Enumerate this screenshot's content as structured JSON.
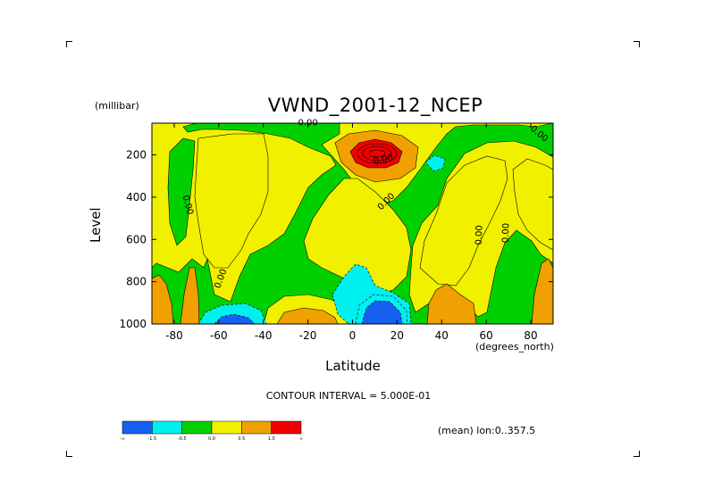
{
  "chart_data": {
    "type": "heatmap",
    "title": "VWND_2001-12_NCEP",
    "xlabel": "Latitude",
    "xunit": "(degrees_north)",
    "ylabel": "Level",
    "yunit": "(millibar)",
    "x_ticks": [
      "-80",
      "-60",
      "-40",
      "-20",
      "0",
      "20",
      "40",
      "60",
      "80"
    ],
    "y_ticks": [
      "200",
      "400",
      "600",
      "800",
      "1000"
    ],
    "xlim": [
      -90,
      90
    ],
    "ylim": [
      1000,
      50
    ],
    "y_reversed": true,
    "contour_interval_text": "CONTOUR INTERVAL = 5.000E-01",
    "mean_text": "(mean) lon:0..357.5",
    "contour_labels": [
      "0.00",
      "0.00",
      "0.00",
      "0.00",
      "0.00",
      "0.00",
      "0.00",
      "0.00"
    ],
    "colorbar": {
      "colors": [
        "#1560f0",
        "#00f0f0",
        "#00d000",
        "#f0f000",
        "#f0a000",
        "#f00000"
      ],
      "labels": [
        "-∞",
        "-1.5",
        "-0.5",
        "0.0",
        "0.5",
        "1.0",
        "∞"
      ]
    },
    "grid": false
  }
}
